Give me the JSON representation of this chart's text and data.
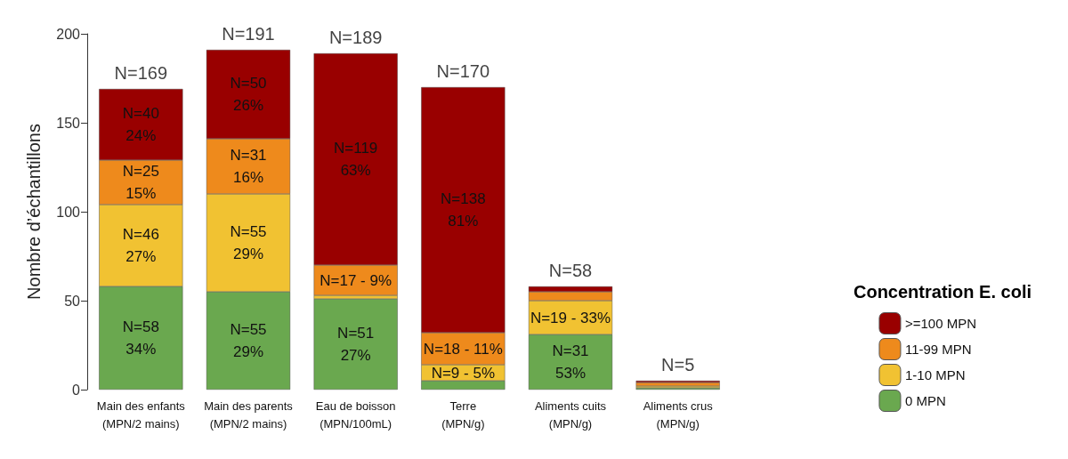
{
  "chart_data": {
    "type": "bar",
    "stacked": true,
    "ylabel": "Nombre d’échantillons",
    "legend_title": "Concentration E. coli",
    "legend": "right",
    "categories": [
      "Main des enfants\n(MPN/2 mains)",
      "Main des parents\n(MPN/2 mains)",
      "Eau de boisson\n(MPN/100mL)",
      "Terre\n(MPN/g)",
      "Aliments cuits\n(MPN/g)",
      "Aliments crus\n(MPN/g)"
    ],
    "series": [
      {
        "name": "0 MPN",
        "color": "#6aa84f",
        "values": [
          58,
          55,
          51,
          5,
          31,
          1
        ],
        "value_labels": [
          "N=58\n34%",
          "N=55\n29%",
          "N=51\n27%",
          null,
          "N=31\n53%",
          null
        ]
      },
      {
        "name": "1-10 MPN",
        "color": "#f1c232",
        "values": [
          46,
          55,
          2,
          9,
          19,
          1
        ],
        "value_labels": [
          "N=46\n27%",
          "N=55\n29%",
          null,
          "N=9 - 5%",
          "N=19 - 33%",
          null
        ]
      },
      {
        "name": "11-99 MPN",
        "color": "#ee8a1c",
        "values": [
          25,
          31,
          17,
          18,
          5,
          2
        ],
        "value_labels": [
          "N=25\n15%",
          "N=31\n16%",
          "N=17 - 9%",
          "N=18 - 11%",
          null,
          null
        ]
      },
      {
        "name": ">=100 MPN",
        "color": "#990000",
        "values": [
          40,
          50,
          119,
          138,
          3,
          1
        ],
        "value_labels": [
          "N=40\n24%",
          "N=50\n26%",
          "N=119\n63%",
          "N=138\n81%",
          null,
          null
        ]
      }
    ],
    "totals": [
      "N=169",
      "N=191",
      "N=189",
      "N=170",
      "N=58",
      "N=5"
    ],
    "ylim": [
      0,
      200
    ],
    "yticks": [
      0,
      50,
      100,
      150,
      200
    ],
    "grid": false
  }
}
